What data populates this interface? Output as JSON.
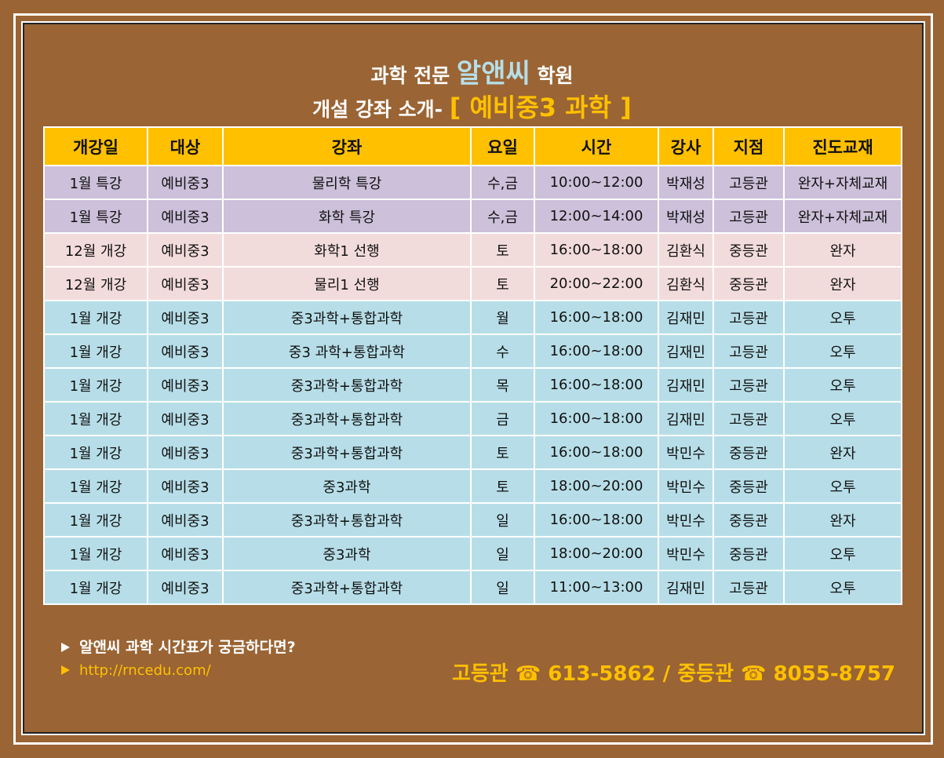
{
  "header": {
    "title_line1": [
      "과학 전문",
      "알앤씨",
      "학원"
    ],
    "title_line2": [
      "개설 강좌 소개-",
      "[ 예비중3 과학 ]"
    ]
  },
  "table": {
    "columns": [
      "개강일",
      "대상",
      "강좌",
      "요일",
      "시간",
      "강사",
      "지점",
      "진도교재"
    ],
    "header_color": "#ffc000",
    "rows": [
      {
        "color": "#ccc0da",
        "cells": [
          "1월 특강",
          "예비중3",
          "물리학 특강",
          "수,금",
          "10:00~12:00",
          "박재성",
          "고등관",
          "완자+자체교재"
        ]
      },
      {
        "color": "#ccc0da",
        "cells": [
          "1월 특강",
          "예비중3",
          "화학 특강",
          "수,금",
          "12:00~14:00",
          "박재성",
          "고등관",
          "완자+자체교재"
        ]
      },
      {
        "color": "#f2dcdb",
        "cells": [
          "12월 개강",
          "예비중3",
          "화학1 선행",
          "토",
          "16:00~18:00",
          "김환식",
          "중등관",
          "완자"
        ]
      },
      {
        "color": "#f2dcdb",
        "cells": [
          "12월 개강",
          "예비중3",
          "물리1 선행",
          "토",
          "20:00~22:00",
          "김환식",
          "중등관",
          "완자"
        ]
      },
      {
        "color": "#b7dee8",
        "cells": [
          "1월 개강",
          "예비중3",
          "중3과학+통합과학",
          "월",
          "16:00~18:00",
          "김재민",
          "고등관",
          "오투"
        ]
      },
      {
        "color": "#b7dee8",
        "cells": [
          "1월 개강",
          "예비중3",
          "중3 과학+통합과학",
          "수",
          "16:00~18:00",
          "김재민",
          "고등관",
          "오투"
        ]
      },
      {
        "color": "#b7dee8",
        "cells": [
          "1월 개강",
          "예비중3",
          "중3과학+통합과학",
          "목",
          "16:00~18:00",
          "김재민",
          "고등관",
          "오투"
        ]
      },
      {
        "color": "#b7dee8",
        "cells": [
          "1월 개강",
          "예비중3",
          "중3과학+통합과학",
          "금",
          "16:00~18:00",
          "김재민",
          "고등관",
          "오투"
        ]
      },
      {
        "color": "#b7dee8",
        "cells": [
          "1월 개강",
          "예비중3",
          "중3과학+통합과학",
          "토",
          "16:00~18:00",
          "박민수",
          "중등관",
          "완자"
        ]
      },
      {
        "color": "#b7dee8",
        "cells": [
          "1월 개강",
          "예비중3",
          "중3과학",
          "토",
          "18:00~20:00",
          "박민수",
          "중등관",
          "오투"
        ]
      },
      {
        "color": "#b7dee8",
        "cells": [
          "1월 개강",
          "예비중3",
          "중3과학+통합과학",
          "일",
          "16:00~18:00",
          "박민수",
          "중등관",
          "완자"
        ]
      },
      {
        "color": "#b7dee8",
        "cells": [
          "1월 개강",
          "예비중3",
          "중3과학",
          "일",
          "18:00~20:00",
          "박민수",
          "중등관",
          "오투"
        ]
      },
      {
        "color": "#b7dee8",
        "cells": [
          "1월 개강",
          "예비중3",
          "중3과학+통합과학",
          "일",
          "11:00~13:00",
          "김재민",
          "고등관",
          "오투"
        ]
      }
    ]
  },
  "footer": {
    "question": "알앤씨 과학 시간표가 궁금하다면?",
    "url": "http://rncedu.com/",
    "contact": "고등관 ☎ 613-5862 / 중등관 ☎ 8055-8757"
  }
}
